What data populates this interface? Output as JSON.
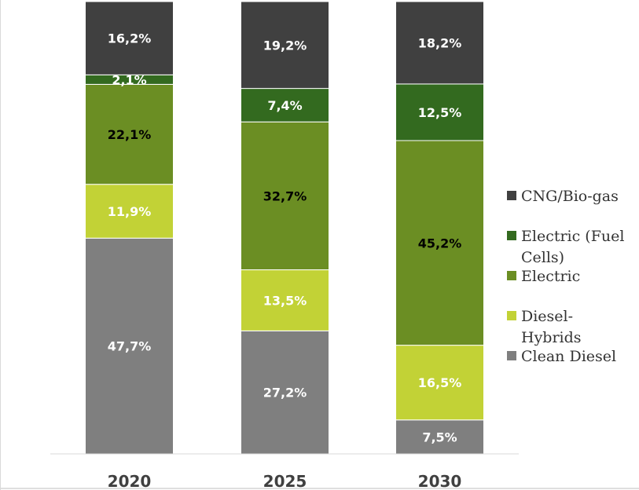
{
  "chart_data": {
    "type": "bar",
    "stacked": true,
    "percent_stacked": true,
    "categories": [
      "2020",
      "2025",
      "2030"
    ],
    "series": [
      {
        "name": "Clean Diesel",
        "color": "#7f7f7f",
        "label_color": "#ffffff",
        "values": [
          47.7,
          27.2,
          7.5
        ],
        "labels": [
          "47,7%",
          "27,2%",
          "7,5%"
        ]
      },
      {
        "name": "Diesel-Hybrids",
        "color": "#c2d236",
        "label_color": "#ffffff",
        "values": [
          11.9,
          13.5,
          16.5
        ],
        "labels": [
          "11,9%",
          "13,5%",
          "16,5%"
        ]
      },
      {
        "name": "Electric",
        "color": "#6b8e23",
        "label_color": "#000000",
        "values": [
          22.1,
          32.7,
          45.2
        ],
        "labels": [
          "22,1%",
          "32,7%",
          "45,2%"
        ]
      },
      {
        "name": "Electric (Fuel Cells)",
        "color": "#336a1f",
        "label_color": "#ffffff",
        "values": [
          2.1,
          7.4,
          12.5
        ],
        "labels": [
          "2,1%",
          "7,4%",
          "12,5%"
        ]
      },
      {
        "name": "CNG/Bio-gas",
        "color": "#404040",
        "label_color": "#ffffff",
        "values": [
          16.2,
          19.2,
          18.2
        ],
        "labels": [
          "16,2%",
          "19,2%",
          "18,2%"
        ]
      }
    ],
    "legend_order": [
      "CNG/Bio-gas",
      "Electric (Fuel Cells)",
      "Electric",
      "Diesel-Hybrids",
      "Clean Diesel"
    ],
    "legend_labels": [
      [
        "CNG/Bio-gas"
      ],
      [
        "Electric (Fuel",
        "Cells)"
      ],
      [
        "Electric"
      ],
      [
        "Diesel-",
        "Hybrids"
      ],
      [
        "Clean Diesel"
      ]
    ],
    "legend_position": "right",
    "grid": false,
    "ylim": [
      0,
      100
    ]
  }
}
